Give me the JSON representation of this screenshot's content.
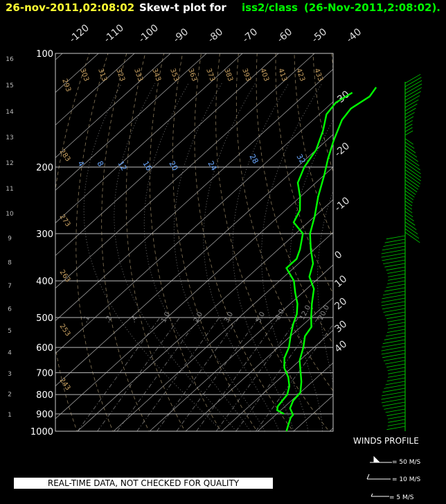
{
  "header": {
    "datetime": "26-nov-2011,02:08:02",
    "prefix": "Skew-t plot for",
    "station": "iss2/class",
    "suffix": "(26-Nov-2011,2:08:02).",
    "colors": {
      "datetime": "#ffff33",
      "text": "#ffffff",
      "highlight": "#00ff00"
    }
  },
  "notice": "REAL-TIME DATA, NOT CHECKED FOR QUALITY",
  "winds_legend": {
    "title": "WINDS PROFILE",
    "items": [
      "= 50 M/S",
      "= 10 M/S",
      "= 5 M/S"
    ]
  },
  "chart_data": {
    "type": "skew-t",
    "pressure_levels_mb": [
      100,
      200,
      300,
      400,
      500,
      600,
      700,
      800,
      900,
      1000
    ],
    "pressure_labels": [
      "100",
      "200",
      "300",
      "400",
      "500",
      "600",
      "700",
      "800",
      "900",
      "1000"
    ],
    "height_km_labels": [
      "1",
      "2",
      "3",
      "4",
      "5",
      "6",
      "7",
      "8",
      "9",
      "10",
      "11",
      "12",
      "13",
      "14",
      "15",
      "16"
    ],
    "height_km_pressures": [
      900,
      795,
      701,
      616,
      540,
      472,
      410,
      356,
      307,
      264,
      227,
      194,
      166,
      142,
      121,
      103
    ],
    "temperature_labels_top": [
      "-120",
      "-110",
      "-100",
      "-90",
      "-80",
      "-70",
      "-60",
      "-50",
      "-40"
    ],
    "temperature_labels_right": [
      "-30",
      "-20",
      "-10",
      "0",
      "10",
      "20",
      "30",
      "40"
    ],
    "dry_adiabat_labels": [
      "293",
      "303",
      "313",
      "323",
      "333",
      "343",
      "353",
      "363",
      "373",
      "383",
      "393",
      "403",
      "413",
      "423",
      "433"
    ],
    "dry_adiabat_labels_left": [
      "283",
      "273",
      "263",
      "253",
      "243"
    ],
    "moist_adiabat_labels": [
      "4",
      "8",
      "12",
      "16",
      "20",
      "24",
      "28",
      "32"
    ],
    "mixing_ratio_labels": [
      ".1",
      ".2",
      ".4",
      "1.0",
      "2.0",
      "3.0",
      "5.0",
      "8.0",
      "12.0",
      "20.0"
    ],
    "temperature_profile": [
      {
        "p": 1000,
        "t": 18.0
      },
      {
        "p": 960,
        "t": 16.5
      },
      {
        "p": 920,
        "t": 15.0
      },
      {
        "p": 905,
        "t": 14.8
      },
      {
        "p": 870,
        "t": 12.0
      },
      {
        "p": 830,
        "t": 10.5
      },
      {
        "p": 790,
        "t": 10.0
      },
      {
        "p": 740,
        "t": 7.0
      },
      {
        "p": 700,
        "t": 4.0
      },
      {
        "p": 650,
        "t": 0.0
      },
      {
        "p": 600,
        "t": -3.0
      },
      {
        "p": 560,
        "t": -6.0
      },
      {
        "p": 530,
        "t": -7.0
      },
      {
        "p": 500,
        "t": -10.0
      },
      {
        "p": 460,
        "t": -14.0
      },
      {
        "p": 420,
        "t": -18.0
      },
      {
        "p": 390,
        "t": -23.0
      },
      {
        "p": 360,
        "t": -26.0
      },
      {
        "p": 330,
        "t": -31.0
      },
      {
        "p": 300,
        "t": -36.0
      },
      {
        "p": 270,
        "t": -40.0
      },
      {
        "p": 240,
        "t": -45.0
      },
      {
        "p": 210,
        "t": -50.0
      },
      {
        "p": 190,
        "t": -54.0
      },
      {
        "p": 170,
        "t": -58.0
      },
      {
        "p": 150,
        "t": -62.0
      },
      {
        "p": 140,
        "t": -63.0
      },
      {
        "p": 130,
        "t": -61.5
      },
      {
        "p": 123,
        "t": -62.5
      }
    ],
    "dewpoint_profile": [
      {
        "p": 900,
        "t": 12.0
      },
      {
        "p": 880,
        "t": 9.0
      },
      {
        "p": 860,
        "t": 8.0
      },
      {
        "p": 830,
        "t": 7.5
      },
      {
        "p": 800,
        "t": 7.0
      },
      {
        "p": 760,
        "t": 5.0
      },
      {
        "p": 720,
        "t": 2.0
      },
      {
        "p": 680,
        "t": -2.0
      },
      {
        "p": 640,
        "t": -5.0
      },
      {
        "p": 600,
        "t": -7.0
      },
      {
        "p": 560,
        "t": -10.0
      },
      {
        "p": 520,
        "t": -13.0
      },
      {
        "p": 490,
        "t": -15.0
      },
      {
        "p": 460,
        "t": -18.0
      },
      {
        "p": 430,
        "t": -22.0
      },
      {
        "p": 400,
        "t": -26.0
      },
      {
        "p": 370,
        "t": -32.0
      },
      {
        "p": 350,
        "t": -32.0
      },
      {
        "p": 330,
        "t": -34.0
      },
      {
        "p": 300,
        "t": -38.0
      },
      {
        "p": 280,
        "t": -44.0
      },
      {
        "p": 260,
        "t": -46.0
      },
      {
        "p": 240,
        "t": -50.0
      },
      {
        "p": 220,
        "t": -55.0
      },
      {
        "p": 200,
        "t": -58.0
      },
      {
        "p": 180,
        "t": -60.0
      },
      {
        "p": 160,
        "t": -64.0
      },
      {
        "p": 145,
        "t": -68.0
      },
      {
        "p": 135,
        "t": -69.0
      },
      {
        "p": 127,
        "t": -67.5
      }
    ]
  }
}
